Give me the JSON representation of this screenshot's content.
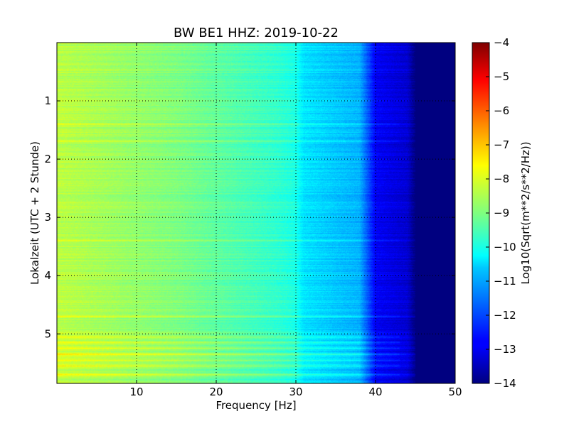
{
  "chart_data": {
    "type": "heatmap",
    "title": "BW BE1 HHZ: 2019-10-22",
    "xlabel": "Frequency [Hz]",
    "ylabel": "Lokalzeit (UTC + 2 Stunde)",
    "colorbar_label": "Log10(Sqrt(m**2/s**2/Hz))",
    "xlim": [
      0,
      50
    ],
    "ylim": [
      0,
      5.85
    ],
    "y_inverted": true,
    "x_ticks": [
      10,
      20,
      30,
      40,
      50
    ],
    "y_ticks": [
      1,
      2,
      3,
      4,
      5
    ],
    "color_range": [
      -14,
      -4
    ],
    "colorbar_ticks": [
      -4,
      -5,
      -6,
      -7,
      -8,
      -9,
      -10,
      -11,
      -12,
      -13,
      -14
    ],
    "colormap": "jet",
    "grid": true,
    "frequency_profile": {
      "freq_hz": [
        0,
        5,
        10,
        15,
        20,
        25,
        28,
        30,
        31,
        35,
        38,
        40,
        42,
        44,
        45,
        50
      ],
      "value": [
        -8.4,
        -8.6,
        -8.8,
        -9.0,
        -9.3,
        -9.6,
        -9.8,
        -10.0,
        -10.5,
        -10.8,
        -11.0,
        -12.8,
        -13.0,
        -13.2,
        -14,
        -14
      ]
    },
    "bands": [
      {
        "time_h": 1.4,
        "delta": 0.4
      },
      {
        "time_h": 1.7,
        "delta": 0.4
      },
      {
        "time_h": 3.4,
        "delta": 0.5
      },
      {
        "time_h": 4.7,
        "delta": 0.5
      },
      {
        "time_h": 5.05,
        "delta": 0.7
      },
      {
        "time_h": 5.15,
        "delta": 0.8
      },
      {
        "time_h": 5.25,
        "delta": 0.8
      },
      {
        "time_h": 5.35,
        "delta": 0.9
      },
      {
        "time_h": 5.45,
        "delta": 0.7
      },
      {
        "time_h": 5.55,
        "delta": 0.8
      },
      {
        "time_h": 5.7,
        "delta": 0.8
      }
    ]
  }
}
